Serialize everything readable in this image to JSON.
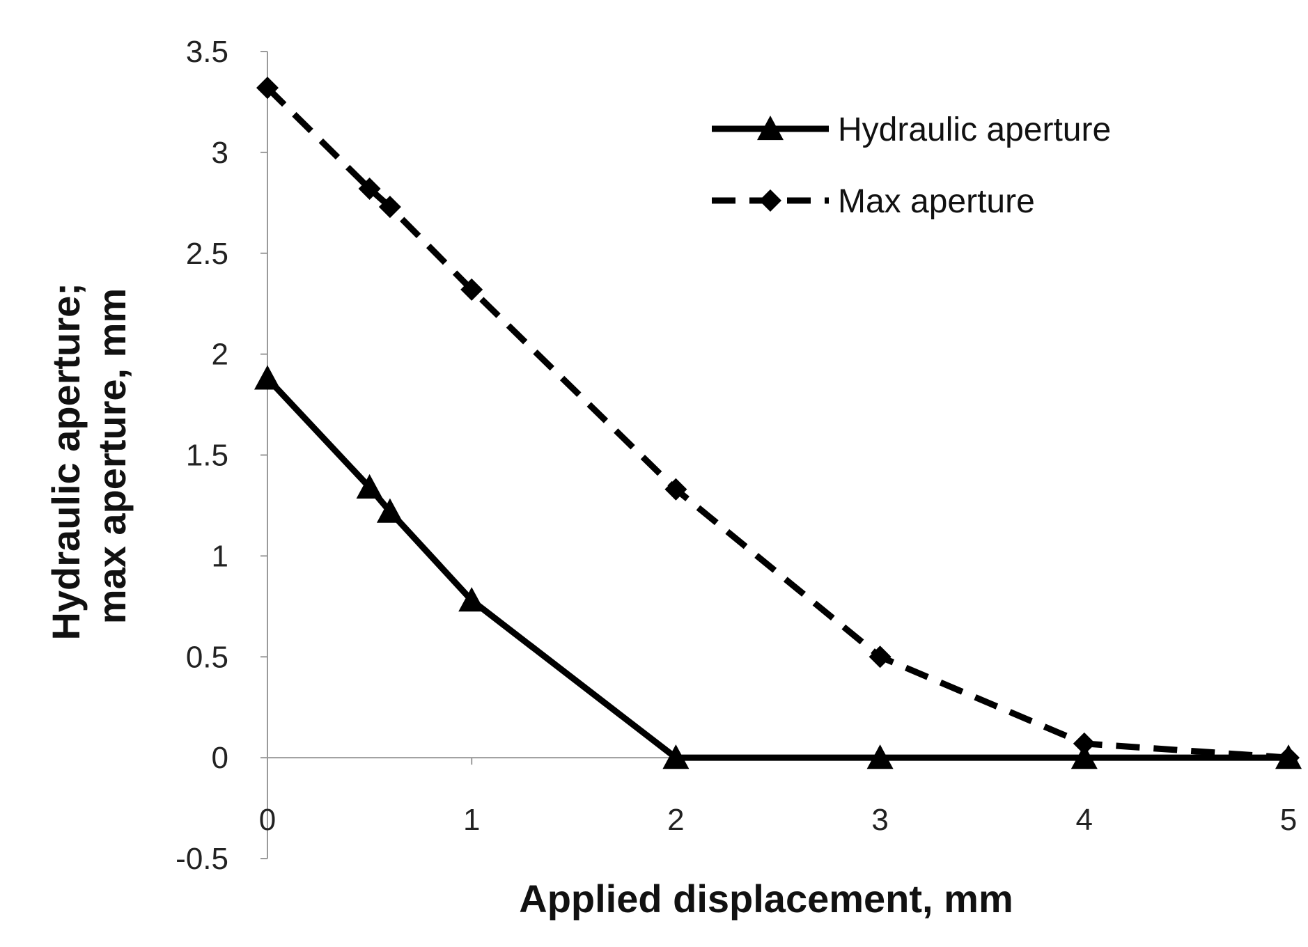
{
  "chart_data": {
    "type": "line",
    "title": "",
    "xlabel": "Applied displacement, mm",
    "ylabel_lines": [
      "Hydraulic aperture;",
      "max aperture, mm"
    ],
    "xlim": [
      0,
      5
    ],
    "ylim": [
      -0.5,
      3.5
    ],
    "x_ticks": [
      0,
      1,
      2,
      3,
      4,
      5
    ],
    "x_tick_labels": [
      "0",
      "1",
      "2",
      "3",
      "4",
      "5"
    ],
    "y_ticks": [
      -0.5,
      0,
      0.5,
      1,
      1.5,
      2,
      2.5,
      3,
      3.5
    ],
    "y_tick_labels": [
      "-0.5",
      "0",
      "0.5",
      "1",
      "1.5",
      "2",
      "2.5",
      "3",
      "3.5"
    ],
    "grid": false,
    "legend_position": "top-right",
    "series": [
      {
        "name": "Hydraulic aperture",
        "line_style": "solid",
        "marker": "triangle",
        "color": "#000000",
        "x": [
          0,
          0.5,
          0.6,
          1,
          2,
          3,
          4,
          5
        ],
        "y": [
          1.88,
          1.34,
          1.22,
          0.78,
          0.0,
          0.0,
          0.0,
          0.0
        ]
      },
      {
        "name": "Max aperture",
        "line_style": "dashed",
        "marker": "diamond",
        "color": "#000000",
        "x": [
          0,
          0.5,
          0.6,
          1,
          2,
          3,
          4,
          5
        ],
        "y": [
          3.32,
          2.82,
          2.73,
          2.32,
          1.33,
          0.5,
          0.07,
          0.0
        ]
      }
    ]
  }
}
